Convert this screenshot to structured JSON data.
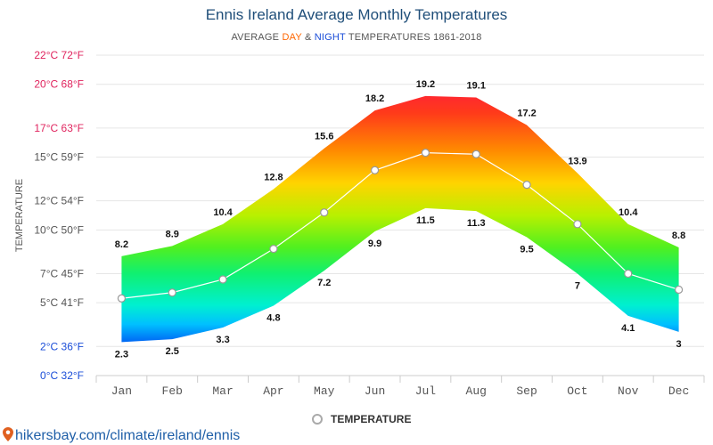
{
  "chart_data": {
    "type": "area",
    "title": "Ennis Ireland Average Monthly Temperatures",
    "subtitle": {
      "prefix": "AVERAGE ",
      "day": "DAY",
      "amp": " & ",
      "night": "NIGHT",
      "suffix": " TEMPERATURES 1861-2018"
    },
    "ylabel": "TEMPERATURE",
    "ylim": [
      0,
      22
    ],
    "y_ticks": [
      {
        "value": 0,
        "label": "0°C 32°F",
        "color": "#1a4dd8"
      },
      {
        "value": 2,
        "label": "2°C 36°F",
        "color": "#1a4dd8"
      },
      {
        "value": 5,
        "label": "5°C 41°F",
        "color": "#555555"
      },
      {
        "value": 7,
        "label": "7°C 45°F",
        "color": "#555555"
      },
      {
        "value": 10,
        "label": "10°C 50°F",
        "color": "#555555"
      },
      {
        "value": 12,
        "label": "12°C 54°F",
        "color": "#555555"
      },
      {
        "value": 15,
        "label": "15°C 59°F",
        "color": "#555555"
      },
      {
        "value": 17,
        "label": "17°C 63°F",
        "color": "#e0245e"
      },
      {
        "value": 20,
        "label": "20°C 68°F",
        "color": "#e0245e"
      },
      {
        "value": 22,
        "label": "22°C 72°F",
        "color": "#e0245e"
      }
    ],
    "categories": [
      "Jan",
      "Feb",
      "Mar",
      "Apr",
      "May",
      "Jun",
      "Jul",
      "Aug",
      "Sep",
      "Oct",
      "Nov",
      "Dec"
    ],
    "series": [
      {
        "name": "DAY",
        "values": [
          8.2,
          8.9,
          10.4,
          12.8,
          15.6,
          18.2,
          19.2,
          19.1,
          17.2,
          13.9,
          10.4,
          8.8
        ]
      },
      {
        "name": "NIGHT",
        "values": [
          2.3,
          2.5,
          3.3,
          4.8,
          7.2,
          9.9,
          11.5,
          11.3,
          9.5,
          7,
          4.1,
          3
        ]
      },
      {
        "name": "TEMPERATURE",
        "values": [
          5.3,
          5.7,
          6.6,
          8.7,
          11.2,
          14.1,
          15.3,
          15.2,
          13.1,
          10.4,
          7.0,
          5.9
        ]
      }
    ],
    "legend": {
      "position": "bottom",
      "label": "TEMPERATURE"
    },
    "grid": true
  },
  "footer": {
    "text": "hikersbay.com/climate/ireland/ennis"
  }
}
